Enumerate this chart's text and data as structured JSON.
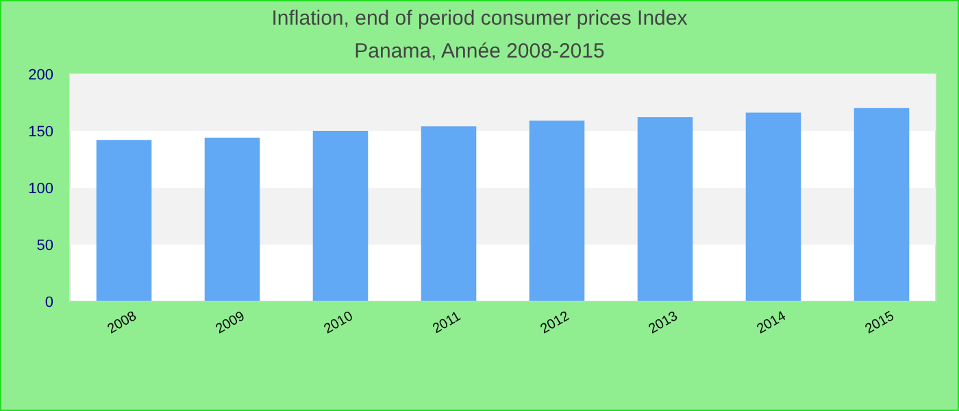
{
  "chart_data": {
    "type": "bar",
    "title": "Inflation, end of period consumer prices  Index",
    "subtitle": "Panama, Année 2008-2015",
    "categories": [
      "2008",
      "2009",
      "2010",
      "2011",
      "2012",
      "2013",
      "2014",
      "2015"
    ],
    "values": [
      142,
      144,
      150,
      154,
      159,
      162,
      166,
      170
    ],
    "color": "#61a8f5",
    "ylim": [
      0,
      200
    ],
    "yticks": [
      0,
      50,
      100,
      150,
      200
    ]
  }
}
